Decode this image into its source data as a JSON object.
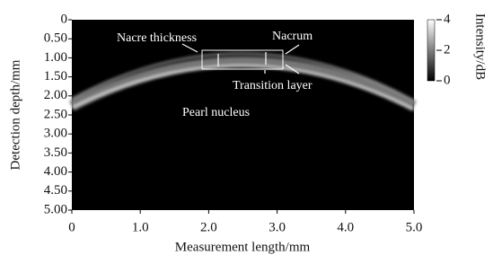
{
  "chart_data": {
    "type": "image",
    "xlabel": "Measurement length/mm",
    "ylabel": "Detection depth/mm",
    "xlim": [
      0,
      5
    ],
    "ylim": [
      0,
      5
    ],
    "xticks": [
      0,
      {
        "value": 1,
        "label": "1.0"
      },
      {
        "value": 2,
        "label": "2.0"
      },
      {
        "value": 3,
        "label": "3.0"
      },
      {
        "value": 4,
        "label": "4.0"
      },
      {
        "value": 5,
        "label": "5.0"
      }
    ],
    "yticks": [
      0,
      {
        "value": 0.5,
        "label": "0.50"
      },
      {
        "value": 1,
        "label": "1.00"
      },
      {
        "value": 1.5,
        "label": "1.50"
      },
      {
        "value": 2,
        "label": "2.00"
      },
      {
        "value": 2.5,
        "label": "2.50"
      },
      {
        "value": 3,
        "label": "3.00"
      },
      {
        "value": 3.5,
        "label": "3.50"
      },
      {
        "value": 4,
        "label": "4.00"
      },
      {
        "value": 4.5,
        "label": "4.50"
      },
      {
        "value": 5,
        "label": "5.00"
      }
    ],
    "colorbar": {
      "label": "Intensity/dB",
      "lim": [
        0,
        4
      ],
      "ticks": [
        4,
        2,
        0
      ]
    },
    "annotations": [
      "Nacre thickness",
      "Nacrum",
      "Transition layer",
      "Pearl nucleus"
    ]
  }
}
